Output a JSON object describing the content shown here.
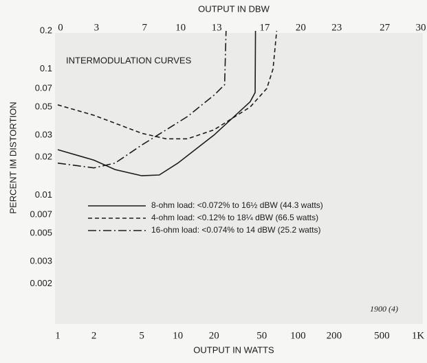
{
  "chart_data": {
    "type": "line",
    "x_axis_label": "OUTPUT IN WATTS",
    "x2_axis_label": "OUTPUT IN DBW",
    "y_axis_label": "PERCENT IM DISTORTION",
    "annotations": [
      "INTERMODULATION CURVES",
      "1900 (4)"
    ],
    "xscale": "log",
    "yscale": "log",
    "xlim": [
      1,
      1000
    ],
    "xticks": [
      1,
      2,
      5,
      10,
      20,
      50,
      100,
      200,
      500,
      {
        "value": 1000,
        "label": "1K"
      }
    ],
    "x2lim": [
      0,
      30
    ],
    "x2ticks": [
      0,
      3,
      7,
      10,
      13,
      17,
      20,
      23,
      27,
      30
    ],
    "ylim": [
      0.001,
      0.2
    ],
    "yticks": [
      0.2,
      0.1,
      0.07,
      0.05,
      0.03,
      0.02,
      0.01,
      0.007,
      0.005,
      0.003,
      0.002
    ],
    "grid": false,
    "legend": "center-left",
    "series": [
      {
        "name": "8-ohm load: <0.072% to 16½ dBW (44.3 watts)",
        "color": "#1a1a1a",
        "dash": "solid",
        "x": [
          1,
          2,
          3,
          5,
          7,
          10,
          20,
          40,
          44,
          44.3
        ],
        "values": [
          0.023,
          0.019,
          0.016,
          0.0143,
          0.0145,
          0.018,
          0.03,
          0.055,
          0.065,
          0.2
        ]
      },
      {
        "name": "4-ohm load: <0.12% to 18¼ dBW (66.5 watts)",
        "color": "#1a1a1a",
        "dash": "dashed",
        "x": [
          1,
          2,
          5,
          8,
          12,
          20,
          40,
          55,
          62,
          66.5
        ],
        "values": [
          0.052,
          0.043,
          0.031,
          0.028,
          0.028,
          0.033,
          0.05,
          0.07,
          0.1,
          0.2
        ]
      },
      {
        "name": "16-ohm load: <0.074% to 14 dBW (25.2 watts)",
        "color": "#1a1a1a",
        "dash": "dashdot",
        "x": [
          1,
          2,
          3,
          5,
          8,
          12,
          20,
          24.5,
          25.2
        ],
        "values": [
          0.018,
          0.0165,
          0.018,
          0.025,
          0.033,
          0.042,
          0.062,
          0.075,
          0.2
        ]
      }
    ]
  }
}
